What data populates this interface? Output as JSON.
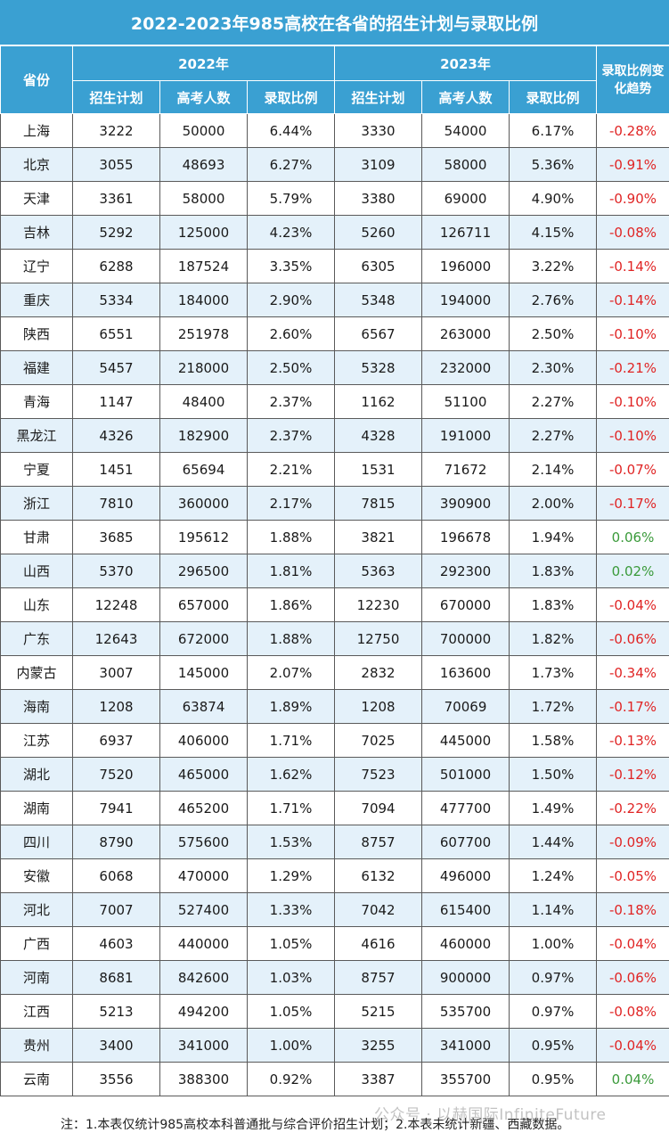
{
  "title": "2022-2023年985高校在各省的招生计划与录取比例",
  "header": {
    "province": "省份",
    "year_2022": "2022年",
    "year_2023": "2023年",
    "trend": "录取比例变化趋势",
    "plan": "招生计划",
    "examinees": "高考人数",
    "ratio": "录取比例"
  },
  "rows": [
    {
      "province": "上海",
      "plan22": "3222",
      "exam22": "50000",
      "ratio22": "6.44%",
      "plan23": "3330",
      "exam23": "54000",
      "ratio23": "6.17%",
      "change": "-0.28%"
    },
    {
      "province": "北京",
      "plan22": "3055",
      "exam22": "48693",
      "ratio22": "6.27%",
      "plan23": "3109",
      "exam23": "58000",
      "ratio23": "5.36%",
      "change": "-0.91%"
    },
    {
      "province": "天津",
      "plan22": "3361",
      "exam22": "58000",
      "ratio22": "5.79%",
      "plan23": "3380",
      "exam23": "69000",
      "ratio23": "4.90%",
      "change": "-0.90%"
    },
    {
      "province": "吉林",
      "plan22": "5292",
      "exam22": "125000",
      "ratio22": "4.23%",
      "plan23": "5260",
      "exam23": "126711",
      "ratio23": "4.15%",
      "change": "-0.08%"
    },
    {
      "province": "辽宁",
      "plan22": "6288",
      "exam22": "187524",
      "ratio22": "3.35%",
      "plan23": "6305",
      "exam23": "196000",
      "ratio23": "3.22%",
      "change": "-0.14%"
    },
    {
      "province": "重庆",
      "plan22": "5334",
      "exam22": "184000",
      "ratio22": "2.90%",
      "plan23": "5348",
      "exam23": "194000",
      "ratio23": "2.76%",
      "change": "-0.14%"
    },
    {
      "province": "陕西",
      "plan22": "6551",
      "exam22": "251978",
      "ratio22": "2.60%",
      "plan23": "6567",
      "exam23": "263000",
      "ratio23": "2.50%",
      "change": "-0.10%"
    },
    {
      "province": "福建",
      "plan22": "5457",
      "exam22": "218000",
      "ratio22": "2.50%",
      "plan23": "5328",
      "exam23": "232000",
      "ratio23": "2.30%",
      "change": "-0.21%"
    },
    {
      "province": "青海",
      "plan22": "1147",
      "exam22": "48400",
      "ratio22": "2.37%",
      "plan23": "1162",
      "exam23": "51100",
      "ratio23": "2.27%",
      "change": "-0.10%"
    },
    {
      "province": "黑龙江",
      "plan22": "4326",
      "exam22": "182900",
      "ratio22": "2.37%",
      "plan23": "4328",
      "exam23": "191000",
      "ratio23": "2.27%",
      "change": "-0.10%"
    },
    {
      "province": "宁夏",
      "plan22": "1451",
      "exam22": "65694",
      "ratio22": "2.21%",
      "plan23": "1531",
      "exam23": "71672",
      "ratio23": "2.14%",
      "change": "-0.07%"
    },
    {
      "province": "浙江",
      "plan22": "7810",
      "exam22": "360000",
      "ratio22": "2.17%",
      "plan23": "7815",
      "exam23": "390900",
      "ratio23": "2.00%",
      "change": "-0.17%"
    },
    {
      "province": "甘肃",
      "plan22": "3685",
      "exam22": "195612",
      "ratio22": "1.88%",
      "plan23": "3821",
      "exam23": "196678",
      "ratio23": "1.94%",
      "change": "0.06%"
    },
    {
      "province": "山西",
      "plan22": "5370",
      "exam22": "296500",
      "ratio22": "1.81%",
      "plan23": "5363",
      "exam23": "292300",
      "ratio23": "1.83%",
      "change": "0.02%"
    },
    {
      "province": "山东",
      "plan22": "12248",
      "exam22": "657000",
      "ratio22": "1.86%",
      "plan23": "12230",
      "exam23": "670000",
      "ratio23": "1.83%",
      "change": "-0.04%"
    },
    {
      "province": "广东",
      "plan22": "12643",
      "exam22": "672000",
      "ratio22": "1.88%",
      "plan23": "12750",
      "exam23": "700000",
      "ratio23": "1.82%",
      "change": "-0.06%"
    },
    {
      "province": "内蒙古",
      "plan22": "3007",
      "exam22": "145000",
      "ratio22": "2.07%",
      "plan23": "2832",
      "exam23": "163600",
      "ratio23": "1.73%",
      "change": "-0.34%"
    },
    {
      "province": "海南",
      "plan22": "1208",
      "exam22": "63874",
      "ratio22": "1.89%",
      "plan23": "1208",
      "exam23": "70069",
      "ratio23": "1.72%",
      "change": "-0.17%"
    },
    {
      "province": "江苏",
      "plan22": "6937",
      "exam22": "406000",
      "ratio22": "1.71%",
      "plan23": "7025",
      "exam23": "445000",
      "ratio23": "1.58%",
      "change": "-0.13%"
    },
    {
      "province": "湖北",
      "plan22": "7520",
      "exam22": "465000",
      "ratio22": "1.62%",
      "plan23": "7523",
      "exam23": "501000",
      "ratio23": "1.50%",
      "change": "-0.12%"
    },
    {
      "province": "湖南",
      "plan22": "7941",
      "exam22": "465200",
      "ratio22": "1.71%",
      "plan23": "7094",
      "exam23": "477700",
      "ratio23": "1.49%",
      "change": "-0.22%"
    },
    {
      "province": "四川",
      "plan22": "8790",
      "exam22": "575600",
      "ratio22": "1.53%",
      "plan23": "8757",
      "exam23": "607700",
      "ratio23": "1.44%",
      "change": "-0.09%"
    },
    {
      "province": "安徽",
      "plan22": "6068",
      "exam22": "470000",
      "ratio22": "1.29%",
      "plan23": "6132",
      "exam23": "496000",
      "ratio23": "1.24%",
      "change": "-0.05%"
    },
    {
      "province": "河北",
      "plan22": "7007",
      "exam22": "527400",
      "ratio22": "1.33%",
      "plan23": "7042",
      "exam23": "615400",
      "ratio23": "1.14%",
      "change": "-0.18%"
    },
    {
      "province": "广西",
      "plan22": "4603",
      "exam22": "440000",
      "ratio22": "1.05%",
      "plan23": "4616",
      "exam23": "460000",
      "ratio23": "1.00%",
      "change": "-0.04%"
    },
    {
      "province": "河南",
      "plan22": "8681",
      "exam22": "842600",
      "ratio22": "1.03%",
      "plan23": "8757",
      "exam23": "900000",
      "ratio23": "0.97%",
      "change": "-0.06%"
    },
    {
      "province": "江西",
      "plan22": "5213",
      "exam22": "494200",
      "ratio22": "1.05%",
      "plan23": "5215",
      "exam23": "535700",
      "ratio23": "0.97%",
      "change": "-0.08%"
    },
    {
      "province": "贵州",
      "plan22": "3400",
      "exam22": "341000",
      "ratio22": "1.00%",
      "plan23": "3255",
      "exam23": "341000",
      "ratio23": "0.95%",
      "change": "-0.04%"
    },
    {
      "province": "云南",
      "plan22": "3556",
      "exam22": "388300",
      "ratio22": "0.92%",
      "plan23": "3387",
      "exam23": "355700",
      "ratio23": "0.95%",
      "change": "0.04%"
    }
  ],
  "note": "注：1.本表仅统计985高校本科普通批与综合评价招生计划；2.本表未统计新疆、西藏数据。",
  "watermark": "公众号 · 以赫国际InfiniteFuture",
  "colors": {
    "header_bg": "#3aa0d2",
    "stripe_bg": "#e4f1fa",
    "negative": "#e02424",
    "positive": "#3a9a3a"
  }
}
